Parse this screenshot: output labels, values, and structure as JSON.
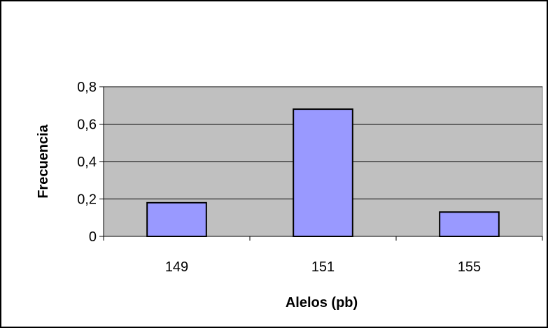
{
  "chart_data": {
    "type": "bar",
    "title": "",
    "xlabel": "Alelos (pb)",
    "ylabel": "Frecuencia",
    "categories": [
      "149",
      "151",
      "155"
    ],
    "values": [
      0.18,
      0.68,
      0.13
    ],
    "ylim": [
      0,
      0.8
    ],
    "yticks": [
      0,
      0.2,
      0.4,
      0.6,
      0.8
    ],
    "ytick_labels": [
      "0",
      "0,2",
      "0,4",
      "0,6",
      "0,8"
    ],
    "grid": true,
    "legend": "none",
    "colors": {
      "bar_fill": "#9999ff",
      "bar_stroke": "#000000",
      "plot_background": "#c0c0c0",
      "gridline": "#000000",
      "frame": "#000000"
    }
  }
}
